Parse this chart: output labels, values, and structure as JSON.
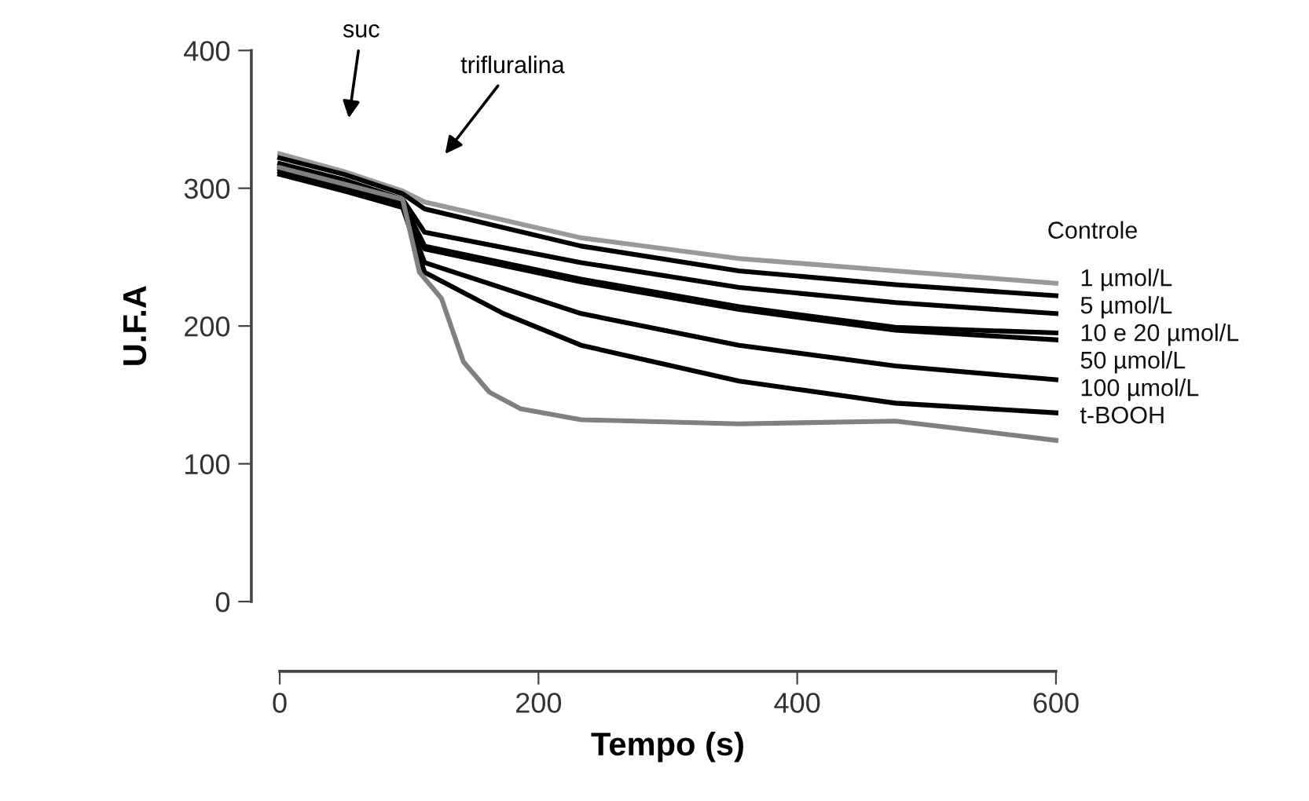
{
  "chart_data": {
    "type": "line",
    "xlabel": "Tempo (s)",
    "ylabel": "U.F.A",
    "xlim": [
      0,
      600
    ],
    "ylim": [
      0,
      400
    ],
    "xticks": [
      0,
      200,
      400,
      600
    ],
    "yticks": [
      0,
      100,
      200,
      300,
      400
    ],
    "grid": false,
    "legend": false,
    "marker": "none",
    "line_style": "solid",
    "annotations": [
      "suc",
      "trifluralina"
    ],
    "series": [
      {
        "name": "Controle",
        "color": "#999999",
        "x": [
          0,
          50,
          95,
          112,
          233,
          355,
          476,
          600
        ],
        "values": [
          325,
          312,
          298,
          290,
          264,
          249,
          240,
          231
        ]
      },
      {
        "name": "1 µmol/L",
        "color": "#000000",
        "x": [
          0,
          50,
          95,
          112,
          233,
          355,
          476,
          600
        ],
        "values": [
          322,
          310,
          296,
          285,
          258,
          240,
          230,
          222
        ]
      },
      {
        "name": "5 µmol/L",
        "color": "#000000",
        "x": [
          0,
          50,
          95,
          112,
          233,
          355,
          476,
          600
        ],
        "values": [
          318,
          306,
          292,
          268,
          246,
          228,
          217,
          209
        ]
      },
      {
        "name": "10 e 20 µmol/L",
        "color": "#000000",
        "x": [
          0,
          50,
          95,
          112,
          233,
          355,
          476,
          600
        ],
        "values": [
          316,
          304,
          290,
          258,
          234,
          214,
          199,
          195
        ]
      },
      {
        "name": null,
        "color": "#000000",
        "x": [
          0,
          50,
          95,
          112,
          233,
          355,
          476,
          600
        ],
        "values": [
          314,
          302,
          289,
          256,
          232,
          212,
          197,
          190
        ]
      },
      {
        "name": "50 µmol/L",
        "color": "#000000",
        "x": [
          0,
          50,
          95,
          112,
          233,
          355,
          476,
          600
        ],
        "values": [
          312,
          300,
          288,
          246,
          209,
          186,
          171,
          161
        ]
      },
      {
        "name": "100 µmol/L",
        "color": "#000000",
        "x": [
          0,
          50,
          95,
          112,
          173,
          233,
          355,
          476,
          600
        ],
        "values": [
          310,
          298,
          286,
          239,
          209,
          186,
          160,
          144,
          137
        ]
      },
      {
        "name": "t-BOOH",
        "color": "#808080",
        "x": [
          0,
          50,
          95,
          108,
          125,
          142,
          162,
          186,
          233,
          355,
          476,
          530,
          600
        ],
        "values": [
          315,
          303,
          292,
          239,
          220,
          174,
          152,
          140,
          132,
          129,
          131,
          125,
          117
        ]
      }
    ]
  }
}
